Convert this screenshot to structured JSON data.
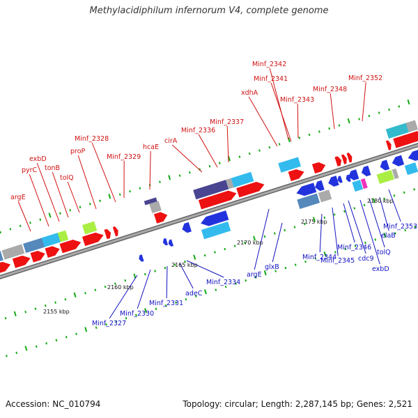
{
  "title": "Methylacidiphilum infernorum V4, complete genome",
  "footer": {
    "accession": "Accession: NC_010794",
    "summary": "Topology: circular; Length: 2,287,145 bp; Genes: 2,521"
  },
  "scale_labels": [
    "2155 kbp",
    "2160 kbp",
    "2165 kbp",
    "2170 kbp",
    "2175 kbp",
    "2180 kbp"
  ],
  "forward_labels": [
    "argE",
    "pyrC",
    "exbD",
    "tonB",
    "tolQ",
    "proP",
    "Minf_2328",
    "Minf_2329",
    "hcaE",
    "cirA",
    "Minf_2336",
    "Minf_2337",
    "xdhA",
    "Minf_2341",
    "Minf_2342",
    "Minf_2343",
    "Minf_2348",
    "Minf_2352"
  ],
  "reverse_labels": [
    "Minf_2327",
    "Minf_2330",
    "Minf_2331",
    "adeC",
    "Minf_2334",
    "argE",
    "glxB",
    "Minf_2344",
    "Minf_2345",
    "Minf_2346",
    "cdc9",
    "exbD",
    "tolQ",
    "elaB",
    "Minf_2353"
  ],
  "colors": {
    "forward_gene": "#ee1111",
    "reverse_gene": "#2233dd",
    "backbone": "#888888",
    "tick": "#11aa11",
    "navy": "#4a4590",
    "cyan": "#33bbee",
    "teal": "#33bbcc",
    "grey": "#aaaaaa",
    "lime": "#aaee44",
    "magenta": "#ee33bb",
    "steel": "#5588bb"
  }
}
